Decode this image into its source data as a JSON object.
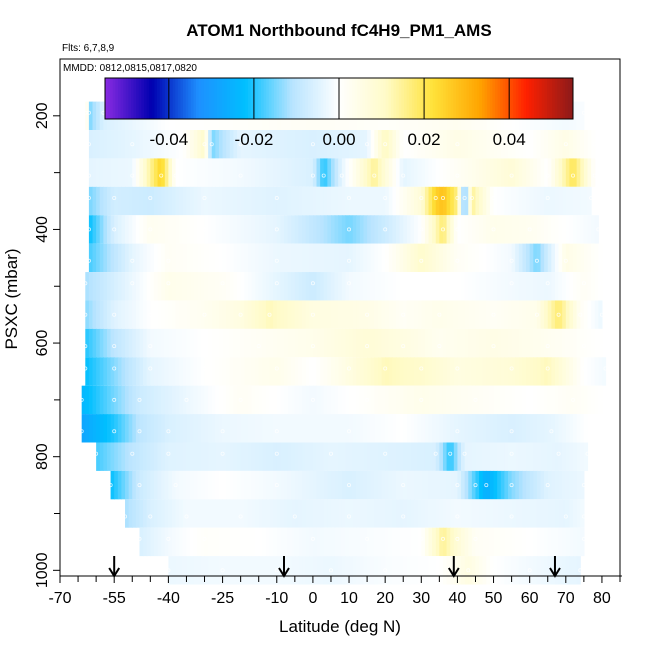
{
  "chart_data": {
    "type": "heatmap",
    "title": "ATOM1 Northbound fC4H9_PM1_AMS",
    "flights_note": "Flts: 6,7,8,9",
    "dates_note": "MMDD: 0812,0815,0817,0820",
    "xlabel": "Latitude (deg N)",
    "ylabel": "PSXC (mbar)",
    "xlim": [
      -70,
      85
    ],
    "ylim": [
      1010,
      100
    ],
    "x_ticks": [
      -70,
      -55,
      -40,
      -25,
      -10,
      0,
      10,
      20,
      30,
      40,
      50,
      60,
      70,
      80
    ],
    "x_minor_ticks": [
      -65,
      -60,
      -50,
      -45,
      -35,
      -30,
      -20,
      -15,
      -5,
      5,
      15,
      25,
      35,
      45,
      55,
      65,
      75,
      85
    ],
    "y_ticks": [
      200,
      400,
      600,
      800,
      1000
    ],
    "y_minor_ticks": [
      300,
      500,
      700,
      900
    ],
    "colorbar": {
      "min": -0.055,
      "max": 0.055,
      "ticks": [
        -0.04,
        -0.02,
        0.0,
        0.02,
        0.04
      ],
      "tick_labels": [
        "-0.04",
        "-0.02",
        "0.00",
        "0.02",
        "0.04"
      ],
      "colors": [
        "#8a2be2",
        "#0000b0",
        "#1e90ff",
        "#00bfff",
        "#b8e4ff",
        "#ffffff",
        "#fffbc8",
        "#ffe23a",
        "#ffa500",
        "#ff2000",
        "#8b1a1a"
      ]
    },
    "arrows_latitude": [
      -55,
      -8,
      39,
      67
    ],
    "layers": [
      {
        "p": 200,
        "lat_min": -63,
        "lat_max": 75,
        "points": [
          [
            -63,
            0.02
          ],
          [
            -62,
            -0.015
          ],
          [
            -58,
            -0.006
          ],
          [
            -40,
            0.0
          ],
          [
            -20,
            0.001
          ],
          [
            0,
            0.002
          ],
          [
            20,
            0.001
          ],
          [
            40,
            0.003
          ],
          [
            55,
            0.0
          ],
          [
            70,
            -0.002
          ],
          [
            75,
            -0.001
          ]
        ]
      },
      {
        "p": 250,
        "lat_min": -62,
        "lat_max": 78,
        "points": [
          [
            -62,
            -0.006
          ],
          [
            -50,
            -0.004
          ],
          [
            -36,
            0.0
          ],
          [
            -30,
            0.01
          ],
          [
            -28,
            -0.015
          ],
          [
            -20,
            -0.004
          ],
          [
            0,
            -0.006
          ],
          [
            15,
            -0.004
          ],
          [
            20,
            0.012
          ],
          [
            25,
            0.0
          ],
          [
            40,
            0.005
          ],
          [
            60,
            0.0
          ],
          [
            70,
            0.005
          ],
          [
            78,
            0.0
          ]
        ]
      },
      {
        "p": 300,
        "lat_min": -62,
        "lat_max": 78,
        "points": [
          [
            -62,
            -0.004
          ],
          [
            -50,
            -0.003
          ],
          [
            -42,
            0.025
          ],
          [
            -38,
            0.0
          ],
          [
            -20,
            -0.002
          ],
          [
            0,
            -0.006
          ],
          [
            3,
            -0.02
          ],
          [
            8,
            -0.004
          ],
          [
            17,
            0.015
          ],
          [
            25,
            -0.004
          ],
          [
            40,
            0.002
          ],
          [
            55,
            0.008
          ],
          [
            65,
            0.0
          ],
          [
            72,
            0.02
          ],
          [
            78,
            0.0
          ]
        ]
      },
      {
        "p": 350,
        "lat_min": -62,
        "lat_max": 77,
        "points": [
          [
            -62,
            -0.015
          ],
          [
            -55,
            -0.007
          ],
          [
            -45,
            -0.008
          ],
          [
            -30,
            -0.003
          ],
          [
            -10,
            -0.005
          ],
          [
            10,
            -0.003
          ],
          [
            20,
            -0.003
          ],
          [
            30,
            0.008
          ],
          [
            34,
            0.025
          ],
          [
            36,
            0.028
          ],
          [
            40,
            0.016
          ],
          [
            42,
            -0.02
          ],
          [
            44,
            0.015
          ],
          [
            50,
            0.0
          ],
          [
            65,
            -0.003
          ],
          [
            77,
            -0.002
          ]
        ]
      },
      {
        "p": 400,
        "lat_min": -62,
        "lat_max": 79,
        "points": [
          [
            -62,
            -0.022
          ],
          [
            -55,
            -0.006
          ],
          [
            -45,
            0.003
          ],
          [
            -30,
            0.0
          ],
          [
            -10,
            -0.004
          ],
          [
            10,
            -0.015
          ],
          [
            20,
            -0.008
          ],
          [
            30,
            0.0
          ],
          [
            36,
            0.018
          ],
          [
            40,
            0.0
          ],
          [
            50,
            0.004
          ],
          [
            60,
            0.003
          ],
          [
            70,
            0.0
          ],
          [
            79,
            -0.002
          ]
        ]
      },
      {
        "p": 450,
        "lat_min": -62,
        "lat_max": 80,
        "points": [
          [
            -62,
            -0.018
          ],
          [
            -50,
            -0.004
          ],
          [
            -40,
            0.002
          ],
          [
            -25,
            0.0
          ],
          [
            -10,
            -0.003
          ],
          [
            10,
            -0.004
          ],
          [
            20,
            0.0
          ],
          [
            30,
            0.01
          ],
          [
            40,
            0.002
          ],
          [
            55,
            -0.002
          ],
          [
            62,
            -0.015
          ],
          [
            70,
            0.005
          ],
          [
            80,
            0.0
          ]
        ]
      },
      {
        "p": 500,
        "lat_min": -63,
        "lat_max": 80,
        "points": [
          [
            -63,
            -0.012
          ],
          [
            -50,
            -0.003
          ],
          [
            -40,
            0.004
          ],
          [
            -25,
            0.002
          ],
          [
            -10,
            -0.004
          ],
          [
            0,
            -0.008
          ],
          [
            10,
            -0.002
          ],
          [
            25,
            0.0
          ],
          [
            40,
            0.0
          ],
          [
            55,
            -0.002
          ],
          [
            65,
            -0.003
          ],
          [
            75,
            0.002
          ],
          [
            80,
            0.0
          ]
        ]
      },
      {
        "p": 550,
        "lat_min": -63,
        "lat_max": 80,
        "points": [
          [
            -63,
            -0.014
          ],
          [
            -55,
            -0.005
          ],
          [
            -45,
            0.0
          ],
          [
            -30,
            0.003
          ],
          [
            -20,
            0.006
          ],
          [
            -12,
            0.012
          ],
          [
            0,
            0.006
          ],
          [
            15,
            0.005
          ],
          [
            25,
            0.002
          ],
          [
            35,
            0.004
          ],
          [
            50,
            0.002
          ],
          [
            62,
            0.004
          ],
          [
            68,
            0.018
          ],
          [
            74,
            0.002
          ],
          [
            80,
            -0.003
          ]
        ]
      },
      {
        "p": 600,
        "lat_min": -63,
        "lat_max": 80,
        "points": [
          [
            -63,
            -0.02
          ],
          [
            -55,
            -0.01
          ],
          [
            -45,
            -0.002
          ],
          [
            -30,
            0.0
          ],
          [
            -15,
            0.002
          ],
          [
            0,
            0.004
          ],
          [
            15,
            0.008
          ],
          [
            25,
            0.006
          ],
          [
            35,
            0.003
          ],
          [
            50,
            0.005
          ],
          [
            65,
            0.003
          ],
          [
            75,
            0.001
          ],
          [
            80,
            0.0
          ]
        ]
      },
      {
        "p": 650,
        "lat_min": -63,
        "lat_max": 81,
        "points": [
          [
            -63,
            -0.022
          ],
          [
            -55,
            -0.014
          ],
          [
            -45,
            -0.004
          ],
          [
            -30,
            0.0
          ],
          [
            -10,
            0.004
          ],
          [
            0,
            0.0
          ],
          [
            10,
            0.006
          ],
          [
            20,
            0.012
          ],
          [
            30,
            0.01
          ],
          [
            40,
            0.006
          ],
          [
            55,
            0.008
          ],
          [
            65,
            0.012
          ],
          [
            75,
            0.0
          ],
          [
            81,
            -0.002
          ]
        ]
      },
      {
        "p": 700,
        "lat_min": -64,
        "lat_max": 80,
        "points": [
          [
            -64,
            -0.024
          ],
          [
            -55,
            -0.015
          ],
          [
            -48,
            -0.008
          ],
          [
            -35,
            -0.003
          ],
          [
            -20,
            0.002
          ],
          [
            0,
            -0.002
          ],
          [
            15,
            0.001
          ],
          [
            30,
            0.004
          ],
          [
            45,
            0.002
          ],
          [
            60,
            0.0
          ],
          [
            72,
            0.002
          ],
          [
            80,
            0.0
          ]
        ]
      },
      {
        "p": 750,
        "lat_min": -64,
        "lat_max": 76,
        "points": [
          [
            -64,
            -0.028
          ],
          [
            -55,
            -0.02
          ],
          [
            -48,
            -0.01
          ],
          [
            -40,
            -0.006
          ],
          [
            -25,
            -0.003
          ],
          [
            -10,
            -0.002
          ],
          [
            10,
            -0.002
          ],
          [
            25,
            0.0
          ],
          [
            40,
            -0.004
          ],
          [
            55,
            -0.006
          ],
          [
            66,
            -0.004
          ],
          [
            76,
            0.0
          ]
        ]
      },
      {
        "p": 800,
        "lat_min": -60,
        "lat_max": 76,
        "points": [
          [
            -60,
            -0.018
          ],
          [
            -50,
            -0.01
          ],
          [
            -40,
            -0.005
          ],
          [
            -25,
            -0.004
          ],
          [
            -10,
            -0.006
          ],
          [
            5,
            -0.004
          ],
          [
            20,
            -0.005
          ],
          [
            34,
            -0.006
          ],
          [
            38,
            -0.02
          ],
          [
            42,
            -0.004
          ],
          [
            55,
            -0.003
          ],
          [
            68,
            -0.004
          ],
          [
            76,
            -0.002
          ]
        ]
      },
      {
        "p": 850,
        "lat_min": -56,
        "lat_max": 75,
        "points": [
          [
            -56,
            -0.022
          ],
          [
            -48,
            -0.008
          ],
          [
            -38,
            -0.002
          ],
          [
            -25,
            0.0
          ],
          [
            -10,
            -0.002
          ],
          [
            10,
            -0.006
          ],
          [
            25,
            -0.003
          ],
          [
            40,
            -0.004
          ],
          [
            45,
            -0.018
          ],
          [
            48,
            -0.026
          ],
          [
            55,
            -0.014
          ],
          [
            65,
            -0.005
          ],
          [
            75,
            -0.003
          ]
        ]
      },
      {
        "p": 900,
        "lat_min": -52,
        "lat_max": 75,
        "points": [
          [
            -52,
            -0.012
          ],
          [
            -45,
            -0.006
          ],
          [
            -35,
            -0.002
          ],
          [
            -20,
            -0.002
          ],
          [
            -5,
            -0.004
          ],
          [
            10,
            -0.003
          ],
          [
            25,
            -0.004
          ],
          [
            40,
            -0.002
          ],
          [
            55,
            -0.003
          ],
          [
            70,
            -0.004
          ],
          [
            75,
            -0.002
          ]
        ]
      },
      {
        "p": 950,
        "lat_min": -48,
        "lat_max": 75,
        "points": [
          [
            -48,
            -0.006
          ],
          [
            -40,
            -0.002
          ],
          [
            -30,
            0.001
          ],
          [
            -15,
            0.0
          ],
          [
            0,
            -0.002
          ],
          [
            15,
            -0.001
          ],
          [
            30,
            0.0
          ],
          [
            36,
            0.015
          ],
          [
            40,
            0.008
          ],
          [
            45,
            0.002
          ],
          [
            60,
            0.0
          ],
          [
            75,
            -0.002
          ]
        ]
      },
      {
        "p": 1000,
        "lat_min": -40,
        "lat_max": 74,
        "points": [
          [
            -40,
            -0.003
          ],
          [
            -25,
            -0.002
          ],
          [
            -10,
            -0.002
          ],
          [
            5,
            -0.003
          ],
          [
            20,
            -0.001
          ],
          [
            35,
            0.0
          ],
          [
            43,
            0.006
          ],
          [
            50,
            0.0
          ],
          [
            60,
            -0.002
          ],
          [
            74,
            -0.004
          ]
        ]
      }
    ]
  }
}
